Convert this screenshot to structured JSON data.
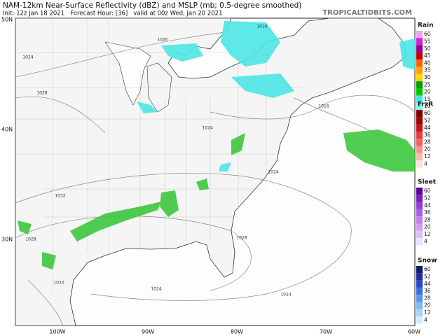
{
  "header": {
    "title": "NAM-12km Near-Surface Reflectivity (dBZ) and MSLP (mb; 0.5-degree smoothed)",
    "subtitle": "Init: 12z Jan 18 2021   Forecast Hour: [36]   valid at 00z Wed, Jan 20 2021",
    "credit": "TROPICALTIDBITS.COM"
  },
  "map": {
    "lat_labels": [
      "50N",
      "40N",
      "30N"
    ],
    "lon_labels": [
      "100W",
      "90W",
      "80W",
      "70W",
      "60W"
    ],
    "isobar_labels": [
      "1020",
      "1024",
      "1028",
      "1016",
      "1016",
      "1024",
      "1024",
      "1032",
      "1028",
      "1028",
      "1020",
      "1024",
      "1024"
    ]
  },
  "legends": [
    {
      "title": "Rain",
      "ticks": [
        "60",
        "55",
        "50",
        "45",
        "40",
        "35",
        "30",
        "25",
        "20",
        "15",
        "10"
      ]
    },
    {
      "title": "FrzR",
      "ticks": [
        "60",
        "52",
        "44",
        "36",
        "28",
        "20",
        "12",
        "4"
      ]
    },
    {
      "title": "Sleet",
      "ticks": [
        "60",
        "52",
        "44",
        "36",
        "28",
        "20",
        "12",
        "4"
      ]
    },
    {
      "title": "Snow",
      "ticks": [
        "60",
        "52",
        "44",
        "36",
        "28",
        "20",
        "12",
        "4"
      ]
    }
  ]
}
